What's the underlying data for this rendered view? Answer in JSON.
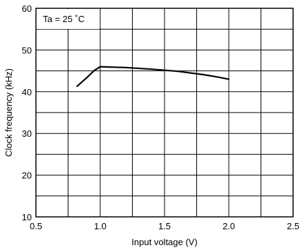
{
  "chart_data": {
    "type": "line",
    "title": "",
    "xlabel": "Input voltage (V)",
    "ylabel": "Clock frequency (kHz)",
    "xlim": [
      0.5,
      2.5
    ],
    "ylim": [
      10,
      60
    ],
    "x_ticks": [
      "0.5",
      "1.0",
      "1.5",
      "2.0",
      "2.5"
    ],
    "y_ticks": [
      "10",
      "20",
      "30",
      "40",
      "50",
      "60"
    ],
    "x_tick_values": [
      0.5,
      1.0,
      1.5,
      2.0,
      2.5
    ],
    "y_tick_values": [
      10,
      20,
      30,
      40,
      50,
      60
    ],
    "x_minor_step": 0.25,
    "y_minor_step": 5,
    "grid": true,
    "annotation": "Ta = 25 ˚C",
    "series": [
      {
        "x": [
          0.82,
          0.9,
          0.95,
          1.0,
          1.2,
          1.4,
          1.6,
          1.8,
          1.9,
          2.0
        ],
        "y": [
          41.3,
          43.5,
          45.0,
          46.0,
          45.8,
          45.4,
          44.9,
          44.1,
          43.6,
          43.0
        ]
      }
    ],
    "colors": {
      "line": "#000000",
      "grid": "#000000",
      "background": "#ffffff"
    }
  }
}
